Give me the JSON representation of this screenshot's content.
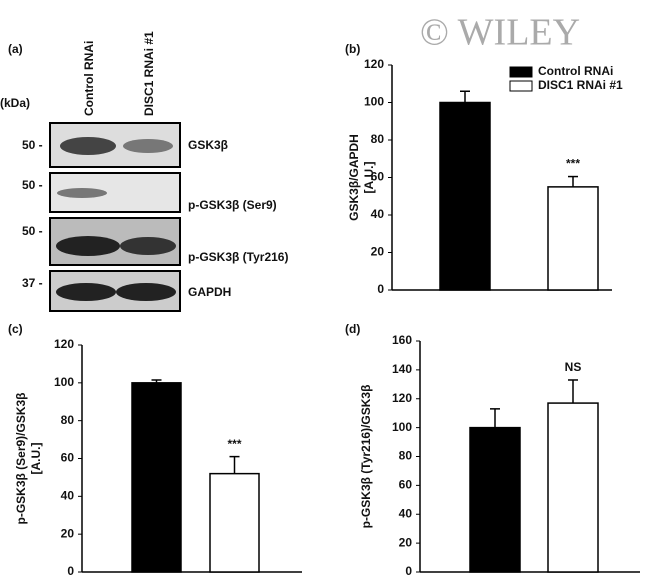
{
  "watermark": "© WILEY",
  "blot": {
    "label": "(a)",
    "unit": "(kDa)",
    "lanes": [
      "Control RNAi",
      "DISC1 RNAi #1"
    ],
    "rows": [
      {
        "kda": "50 -",
        "protein": "GSK3β"
      },
      {
        "kda": "50 -",
        "protein": "p-GSK3β (Ser9)"
      },
      {
        "kda": "50 -",
        "protein": "p-GSK3β (Tyr216)"
      },
      {
        "kda": "37 -",
        "protein": "GAPDH"
      }
    ]
  },
  "chart_data": [
    {
      "type": "bar",
      "label": "(b)",
      "ylabel": [
        "GSK3β/GAPDH",
        "[A.U.]"
      ],
      "values": [
        100,
        55
      ],
      "errors": [
        6,
        5.5
      ],
      "colors": [
        "#000000",
        "#ffffff"
      ],
      "annotations": [
        null,
        "***"
      ],
      "legend": [
        "Control RNAi",
        "DISC1 RNAi #1"
      ],
      "ylim": [
        0,
        120
      ],
      "yticks": [
        0,
        20,
        40,
        60,
        80,
        100,
        120
      ]
    },
    {
      "type": "bar",
      "label": "(c)",
      "ylabel": [
        "p-GSK3β (Ser9)/GSK3β",
        "[A.U.]"
      ],
      "values": [
        100,
        52
      ],
      "errors": [
        1.5,
        9
      ],
      "colors": [
        "#000000",
        "#ffffff"
      ],
      "annotations": [
        null,
        "***"
      ],
      "ylim": [
        0,
        120
      ],
      "yticks": [
        0,
        20,
        40,
        60,
        80,
        100,
        120
      ]
    },
    {
      "type": "bar",
      "label": "(d)",
      "ylabel": [
        "p-GSK3β (Tyr216)/GSK3β"
      ],
      "values": [
        100,
        117
      ],
      "errors": [
        13,
        16
      ],
      "colors": [
        "#000000",
        "#ffffff"
      ],
      "annotations": [
        null,
        "NS"
      ],
      "ylim": [
        0,
        160
      ],
      "yticks": [
        0,
        20,
        40,
        60,
        80,
        100,
        120,
        140,
        160
      ]
    }
  ]
}
